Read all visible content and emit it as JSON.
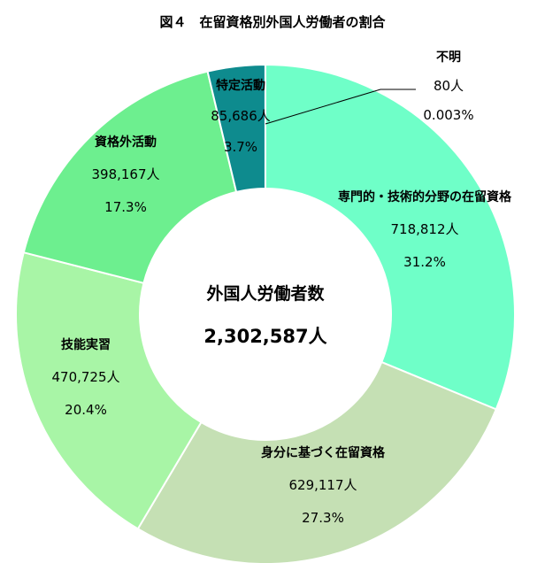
{
  "chart_data": {
    "type": "pie",
    "title": "図４　在留資格別外国人労働者の割合",
    "center_label": "外国人労働者数",
    "center_value": "2,302,587人",
    "slices": [
      {
        "label": "専門的・技術的分野の在留資格",
        "value": 718812,
        "count": "718,812人",
        "percent": "31.2%",
        "color": "#6fffc8"
      },
      {
        "label": "身分に基づく在留資格",
        "value": 629117,
        "count": "629,117人",
        "percent": "27.3%",
        "color": "#c5e0b4"
      },
      {
        "label": "技能実習",
        "value": 470725,
        "count": "470,725人",
        "percent": "20.4%",
        "color": "#a8f5a6"
      },
      {
        "label": "資格外活動",
        "value": 398167,
        "count": "398,167人",
        "percent": "17.3%",
        "color": "#6def8f"
      },
      {
        "label": "特定活動",
        "value": 85686,
        "count": "85,686人",
        "percent": "3.7%",
        "color": "#0e8b8e"
      },
      {
        "label": "不明",
        "value": 80,
        "count": "80人",
        "percent": "0.003%",
        "color": "#6fffc8"
      }
    ]
  }
}
